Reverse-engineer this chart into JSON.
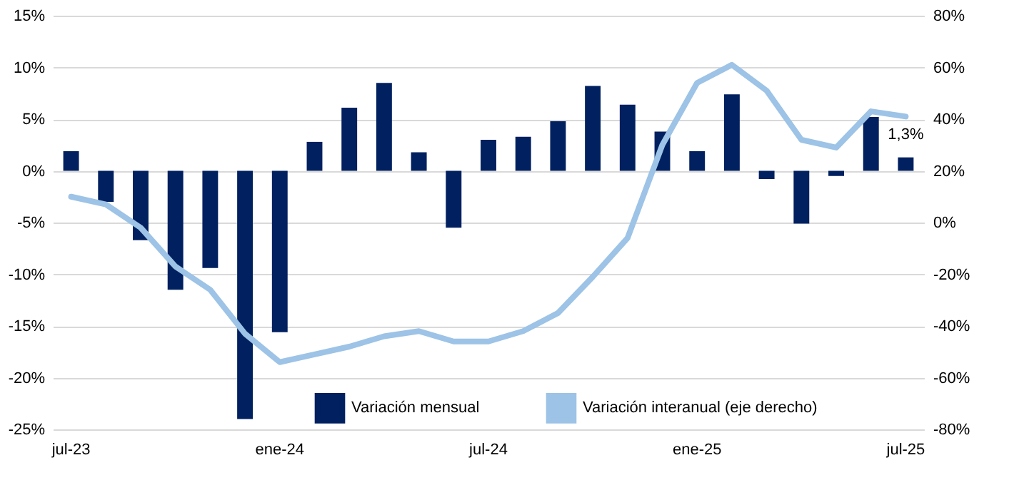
{
  "chart_data": {
    "type": "bar",
    "categories": [
      "jul-23",
      null,
      null,
      null,
      null,
      null,
      "ene-24",
      null,
      null,
      null,
      null,
      null,
      "jul-24",
      null,
      null,
      null,
      null,
      null,
      "ene-25",
      null,
      null,
      null,
      null,
      null,
      "jul-25"
    ],
    "series": [
      {
        "name": "Variación mensual",
        "color": "#002060",
        "values": [
          1.9,
          -3.0,
          -6.7,
          -11.5,
          -9.4,
          -24.0,
          -15.6,
          2.8,
          6.1,
          8.5,
          1.8,
          -5.5,
          3.0,
          3.3,
          4.8,
          8.2,
          6.4,
          3.8,
          1.9,
          7.4,
          -0.8,
          -5.1,
          -0.5,
          5.2,
          1.3
        ],
        "value_labels": [
          null,
          null,
          null,
          null,
          null,
          null,
          null,
          null,
          null,
          null,
          null,
          null,
          null,
          null,
          null,
          null,
          null,
          null,
          null,
          null,
          null,
          null,
          null,
          null,
          "1,3%"
        ]
      },
      {
        "name": "Variación interanual (eje derecho)",
        "type": "line",
        "axis": "y2",
        "color": "#9dc3e6",
        "values": [
          10,
          7,
          -2,
          -17,
          -26,
          -43,
          -54,
          -51,
          -48,
          -44,
          -42,
          -46,
          -46,
          -42,
          -35,
          -21,
          -6,
          30,
          54,
          61,
          51,
          32,
          29,
          43,
          41
        ]
      }
    ],
    "ylim": [
      -25,
      15
    ],
    "yticks": [
      {
        "value": -25,
        "label": "-25%"
      },
      {
        "value": -20,
        "label": "-20%"
      },
      {
        "value": -15,
        "label": "-15%"
      },
      {
        "value": -10,
        "label": "-10%"
      },
      {
        "value": -5,
        "label": "-5%"
      },
      {
        "value": 0,
        "label": "0%"
      },
      {
        "value": 5,
        "label": "5%"
      },
      {
        "value": 10,
        "label": "10%"
      },
      {
        "value": 15,
        "label": "15%"
      }
    ],
    "y2lim": [
      -80,
      80
    ],
    "y2ticks": [
      {
        "value": -80,
        "label": "-80%"
      },
      {
        "value": -60,
        "label": "-60%"
      },
      {
        "value": -40,
        "label": "-40%"
      },
      {
        "value": -20,
        "label": "-20%"
      },
      {
        "value": 0,
        "label": "0%"
      },
      {
        "value": 20,
        "label": "20%"
      },
      {
        "value": 40,
        "label": "40%"
      },
      {
        "value": 60,
        "label": "60%"
      },
      {
        "value": 80,
        "label": "80%"
      }
    ],
    "grid": "y",
    "legend": "bottom"
  }
}
